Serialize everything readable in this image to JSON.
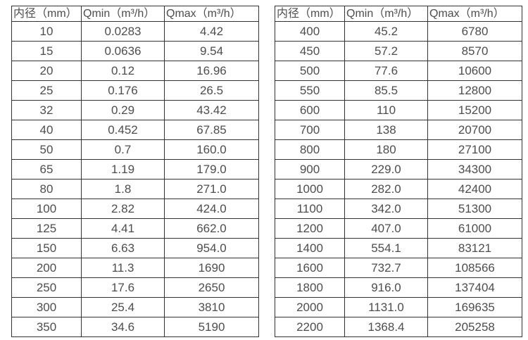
{
  "colors": {
    "text": "#4d4d4d",
    "border": "#333333",
    "background": "#ffffff"
  },
  "tables": [
    {
      "name": "flow-rate-table-dn10-350",
      "headers": [
        "内径（mm）",
        "Qmin（m³/h）",
        "Qmax（m³/h）"
      ],
      "rows": [
        [
          "10",
          "0.0283",
          "4.42"
        ],
        [
          "15",
          "0.0636",
          "9.54"
        ],
        [
          "20",
          "0.12",
          "16.96"
        ],
        [
          "25",
          "0.176",
          "26.5"
        ],
        [
          "32",
          "0.29",
          "43.42"
        ],
        [
          "40",
          "0.452",
          "67.85"
        ],
        [
          "50",
          "0.7",
          "160.0"
        ],
        [
          "65",
          "1.19",
          "179.0"
        ],
        [
          "80",
          "1.8",
          "271.0"
        ],
        [
          "100",
          "2.82",
          "424.0"
        ],
        [
          "125",
          "4.41",
          "662.0"
        ],
        [
          "150",
          "6.63",
          "954.0"
        ],
        [
          "200",
          "11.3",
          "1690"
        ],
        [
          "250",
          "17.6",
          "2650"
        ],
        [
          "300",
          "25.4",
          "3810"
        ],
        [
          "350",
          "34.6",
          "5190"
        ]
      ]
    },
    {
      "name": "flow-rate-table-dn400-2200",
      "headers": [
        "内径（mm）",
        "Qmin（m³/h）",
        "Qmax（m³/h）"
      ],
      "rows": [
        [
          "400",
          "45.2",
          "6780"
        ],
        [
          "450",
          "57.2",
          "8570"
        ],
        [
          "500",
          "77.6",
          "10600"
        ],
        [
          "550",
          "85.5",
          "12800"
        ],
        [
          "600",
          "110",
          "15200"
        ],
        [
          "700",
          "138",
          "20700"
        ],
        [
          "800",
          "180",
          "27100"
        ],
        [
          "900",
          "229.0",
          "34300"
        ],
        [
          "1000",
          "282.0",
          "42400"
        ],
        [
          "1100",
          "342.0",
          "51300"
        ],
        [
          "1200",
          "407.0",
          "61000"
        ],
        [
          "1400",
          "554.1",
          "83121"
        ],
        [
          "1600",
          "732.7",
          "108566"
        ],
        [
          "1800",
          "916.0",
          "137404"
        ],
        [
          "2000",
          "1131.0",
          "169635"
        ],
        [
          "2200",
          "1368.4",
          "205258"
        ]
      ]
    }
  ]
}
